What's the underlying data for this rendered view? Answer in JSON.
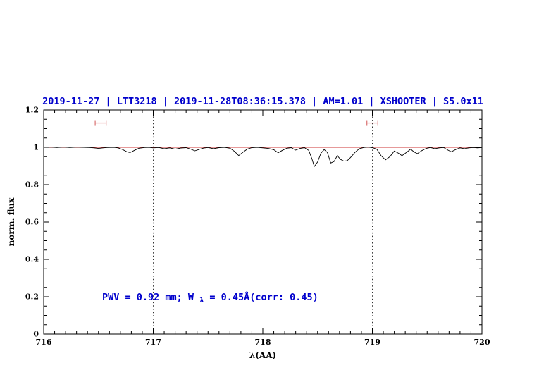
{
  "colors": {
    "title": "#0000cc",
    "annotation": "#0000cc",
    "continuum": "#cc3333",
    "marker": "#d97070",
    "spectrum": "#000000",
    "frame": "#000000"
  },
  "annotation": {
    "prefix": "PWV = 0.92 mm; W",
    "subscript": "λ",
    "suffix": " = 0.45Å(corr: 0.45)",
    "full_text": "PWV = 0.92 mm; Wλ = 0.45Å(corr: 0.45)"
  },
  "chart_data": {
    "type": "line",
    "title": "2019-11-27 | LTT3218 | 2019-11-28T08:36:15.378 | AM=1.01 | XSHOOTER | S5.0x11",
    "xlabel": "λ(AA)",
    "ylabel": "norm. flux",
    "xlim": [
      716,
      720
    ],
    "ylim": [
      0,
      1.2
    ],
    "x_ticks": [
      716,
      717,
      718,
      719,
      720
    ],
    "x_tick_labels": [
      "716",
      "717",
      "718",
      "719",
      "720"
    ],
    "y_ticks": [
      0,
      0.2,
      0.4,
      0.6,
      0.8,
      1,
      1.2
    ],
    "y_tick_labels": [
      "0",
      "0.2",
      "0.4",
      "0.6",
      "0.8",
      "1",
      "1.2"
    ],
    "x_minor_step": 0.1,
    "y_minor_step": 0.05,
    "grid": false,
    "dotted_vlines": [
      717,
      719
    ],
    "continuum_y": 1.0,
    "range_markers": [
      {
        "x": 716.52,
        "half_width": 0.05,
        "y": 1.13
      },
      {
        "x": 719.0,
        "half_width": 0.05,
        "y": 1.13
      }
    ],
    "series": [
      {
        "name": "normalized telluric spectrum",
        "points": [
          [
            716.0,
            1.0
          ],
          [
            716.06,
            1.001
          ],
          [
            716.12,
            0.999
          ],
          [
            716.18,
            1.001
          ],
          [
            716.24,
            0.999
          ],
          [
            716.3,
            1.001
          ],
          [
            716.36,
            1.0
          ],
          [
            716.42,
            0.999
          ],
          [
            716.46,
            0.997
          ],
          [
            716.5,
            0.994
          ],
          [
            716.54,
            0.997
          ],
          [
            716.58,
            0.999
          ],
          [
            716.64,
            1.0
          ],
          [
            716.68,
            0.997
          ],
          [
            716.72,
            0.988
          ],
          [
            716.76,
            0.976
          ],
          [
            716.79,
            0.972
          ],
          [
            716.83,
            0.984
          ],
          [
            716.87,
            0.995
          ],
          [
            716.92,
            0.999
          ],
          [
            716.96,
            1.0
          ],
          [
            717.0,
            0.997
          ],
          [
            717.05,
            0.999
          ],
          [
            717.1,
            0.993
          ],
          [
            717.15,
            0.997
          ],
          [
            717.2,
            0.99
          ],
          [
            717.25,
            0.996
          ],
          [
            717.3,
            0.998
          ],
          [
            717.34,
            0.991
          ],
          [
            717.38,
            0.981
          ],
          [
            717.42,
            0.989
          ],
          [
            717.46,
            0.996
          ],
          [
            717.5,
            0.999
          ],
          [
            717.55,
            0.993
          ],
          [
            717.6,
            0.998
          ],
          [
            717.65,
            1.0
          ],
          [
            717.7,
            0.995
          ],
          [
            717.74,
            0.979
          ],
          [
            717.78,
            0.956
          ],
          [
            717.82,
            0.974
          ],
          [
            717.86,
            0.991
          ],
          [
            717.9,
            0.998
          ],
          [
            717.95,
            1.0
          ],
          [
            718.0,
            0.997
          ],
          [
            718.05,
            0.994
          ],
          [
            718.1,
            0.987
          ],
          [
            718.14,
            0.971
          ],
          [
            718.18,
            0.984
          ],
          [
            718.22,
            0.995
          ],
          [
            718.26,
            0.998
          ],
          [
            718.3,
            0.985
          ],
          [
            718.34,
            0.994
          ],
          [
            718.38,
            0.998
          ],
          [
            718.42,
            0.983
          ],
          [
            718.45,
            0.935
          ],
          [
            718.47,
            0.897
          ],
          [
            718.5,
            0.922
          ],
          [
            718.53,
            0.968
          ],
          [
            718.56,
            0.988
          ],
          [
            718.59,
            0.972
          ],
          [
            718.62,
            0.916
          ],
          [
            718.65,
            0.924
          ],
          [
            718.68,
            0.955
          ],
          [
            718.71,
            0.935
          ],
          [
            718.74,
            0.926
          ],
          [
            718.77,
            0.928
          ],
          [
            718.8,
            0.945
          ],
          [
            718.84,
            0.972
          ],
          [
            718.88,
            0.992
          ],
          [
            718.92,
            0.999
          ],
          [
            718.96,
            1.001
          ],
          [
            719.0,
            0.998
          ],
          [
            719.04,
            0.99
          ],
          [
            719.08,
            0.955
          ],
          [
            719.12,
            0.933
          ],
          [
            719.16,
            0.95
          ],
          [
            719.2,
            0.98
          ],
          [
            719.24,
            0.968
          ],
          [
            719.27,
            0.955
          ],
          [
            719.31,
            0.972
          ],
          [
            719.35,
            0.99
          ],
          [
            719.38,
            0.975
          ],
          [
            719.41,
            0.966
          ],
          [
            719.45,
            0.982
          ],
          [
            719.49,
            0.994
          ],
          [
            719.53,
            0.999
          ],
          [
            719.57,
            0.993
          ],
          [
            719.61,
            0.997
          ],
          [
            719.65,
            0.999
          ],
          [
            719.69,
            0.985
          ],
          [
            719.72,
            0.976
          ],
          [
            719.76,
            0.988
          ],
          [
            719.8,
            0.997
          ],
          [
            719.84,
            0.993
          ],
          [
            719.88,
            0.997
          ],
          [
            719.92,
            0.999
          ],
          [
            719.96,
            0.997
          ],
          [
            720.0,
            0.999
          ]
        ]
      }
    ],
    "legend": null,
    "annotation_text": "PWV = 0.92 mm; Wλ = 0.45Å(corr: 0.45)"
  }
}
